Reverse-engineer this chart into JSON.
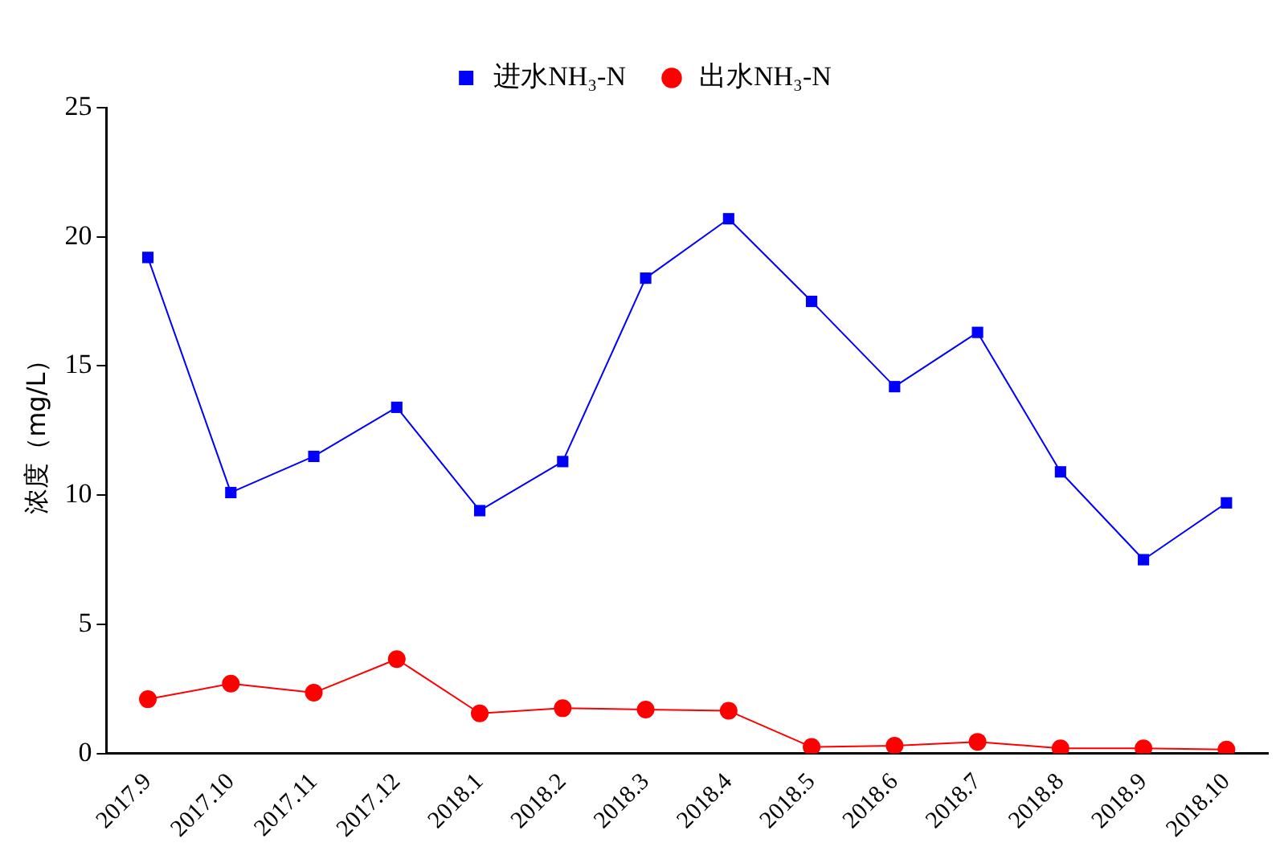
{
  "chart_data": {
    "type": "line",
    "ylabel": "浓度（mg/L）",
    "categories": [
      "2017.9",
      "2017.10",
      "2017.11",
      "2017.12",
      "2018.1",
      "2018.2",
      "2018.3",
      "2018.4",
      "2018.5",
      "2018.6",
      "2018.7",
      "2018.8",
      "2018.9",
      "2018.10"
    ],
    "series": [
      {
        "name": "进水NH₃-N",
        "color": "#0000ff",
        "marker": "square",
        "values": [
          19.2,
          10.1,
          11.5,
          13.4,
          9.4,
          11.3,
          18.4,
          20.7,
          17.5,
          14.2,
          16.3,
          10.9,
          7.5,
          9.7
        ]
      },
      {
        "name": "出水NH₃-N",
        "color": "#ff0000",
        "marker": "circle",
        "values": [
          2.1,
          2.7,
          2.35,
          3.65,
          1.55,
          1.75,
          1.7,
          1.65,
          0.25,
          0.3,
          0.45,
          0.2,
          0.2,
          0.15
        ]
      }
    ],
    "ylim": [
      0,
      25
    ],
    "yticks": [
      0,
      5,
      10,
      15,
      20,
      25
    ],
    "grid": false,
    "legend": "top",
    "line_style": "solid"
  }
}
